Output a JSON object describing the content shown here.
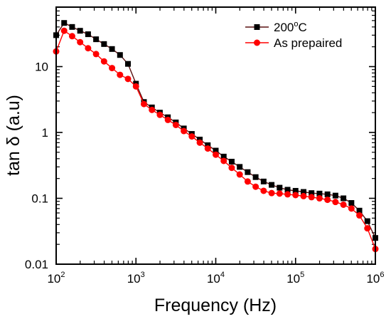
{
  "chart_data": {
    "type": "line",
    "xlabel": "Frequency (Hz)",
    "ylabel_prefix": "tan ",
    "ylabel_symbol": "δ",
    "ylabel_suffix": " (a.u)",
    "xscale": "log",
    "yscale": "log",
    "xlim": [
      100,
      1000000
    ],
    "ylim": [
      0.01,
      80
    ],
    "grid": false,
    "legend_position": "top-right",
    "x_ticks": [
      {
        "base": "10",
        "exp": "2"
      },
      {
        "base": "10",
        "exp": "3"
      },
      {
        "base": "10",
        "exp": "4"
      },
      {
        "base": "10",
        "exp": "5"
      },
      {
        "base": "10",
        "exp": "6"
      }
    ],
    "y_ticks": [
      "0.01",
      "0.1",
      "1",
      "10"
    ],
    "series": [
      {
        "name_prefix": "200",
        "name_sup": "o",
        "name_suffix": "C",
        "color": "#000000",
        "line_color": "#5a1010",
        "marker": "square",
        "x": [
          100,
          125.9,
          158.5,
          199.5,
          251.2,
          316.2,
          398.1,
          501.2,
          631,
          794.3,
          1000,
          1259,
          1585,
          1995,
          2512,
          3162,
          3981,
          5012,
          6310,
          7943,
          10000,
          12589,
          15849,
          19953,
          25119,
          31623,
          39811,
          50119,
          63096,
          79433,
          100000,
          125893,
          158489,
          199526,
          251189,
          316228,
          398107,
          501187,
          630957,
          794328,
          1000000
        ],
        "y": [
          30,
          46,
          40,
          35,
          31,
          26,
          22,
          18.5,
          15,
          11,
          5.5,
          2.9,
          2.4,
          2.0,
          1.7,
          1.42,
          1.15,
          0.95,
          0.78,
          0.64,
          0.53,
          0.43,
          0.36,
          0.3,
          0.25,
          0.21,
          0.18,
          0.16,
          0.145,
          0.135,
          0.13,
          0.125,
          0.12,
          0.118,
          0.115,
          0.11,
          0.1,
          0.085,
          0.065,
          0.045,
          0.025
        ]
      },
      {
        "name_prefix": "As prepaired",
        "name_sup": "",
        "name_suffix": "",
        "color": "#ff0000",
        "line_color": "#ff0000",
        "marker": "circle",
        "x": [
          100,
          125.9,
          158.5,
          199.5,
          251.2,
          316.2,
          398.1,
          501.2,
          631,
          794.3,
          1000,
          1259,
          1585,
          1995,
          2512,
          3162,
          3981,
          5012,
          6310,
          7943,
          10000,
          12589,
          15849,
          19953,
          25119,
          31623,
          39811,
          50119,
          63096,
          79433,
          100000,
          125893,
          158489,
          199526,
          251189,
          316228,
          398107,
          501187,
          630957,
          794328,
          1000000
        ],
        "y": [
          17,
          35,
          29,
          23.5,
          19,
          15.5,
          12,
          9.5,
          7.5,
          6.5,
          5,
          2.7,
          2.2,
          1.85,
          1.55,
          1.3,
          1.05,
          0.87,
          0.7,
          0.57,
          0.46,
          0.37,
          0.29,
          0.23,
          0.18,
          0.15,
          0.13,
          0.12,
          0.118,
          0.115,
          0.112,
          0.108,
          0.104,
          0.1,
          0.095,
          0.088,
          0.08,
          0.07,
          0.055,
          0.035,
          0.017
        ]
      }
    ]
  }
}
